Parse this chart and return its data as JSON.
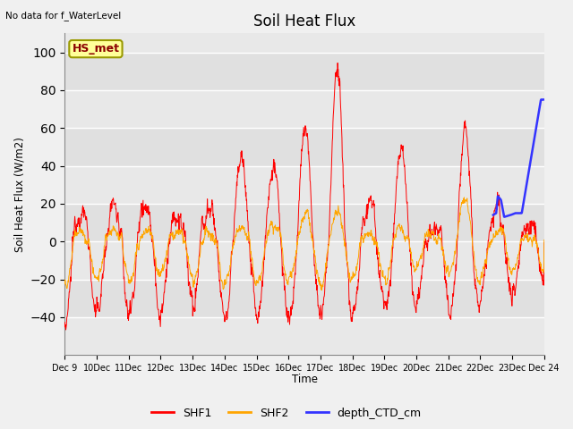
{
  "title": "Soil Heat Flux",
  "ylabel": "Soil Heat Flux (W/m2)",
  "xlabel": "Time",
  "annotation_text": "No data for f_WaterLevel",
  "box_label": "HS_met",
  "ylim": [
    -60,
    110
  ],
  "yticks": [
    -40,
    -20,
    0,
    20,
    40,
    60,
    80,
    100
  ],
  "shf1_color": "#ff0000",
  "shf2_color": "#ffa500",
  "ctd_color": "#3333ff",
  "bg_color": "#e8e8e8",
  "plot_bg_light": "#f0f0f0",
  "legend_items": [
    "SHF1",
    "SHF2",
    "depth_CTD_cm"
  ],
  "fig_bg": "#f0f0f0"
}
